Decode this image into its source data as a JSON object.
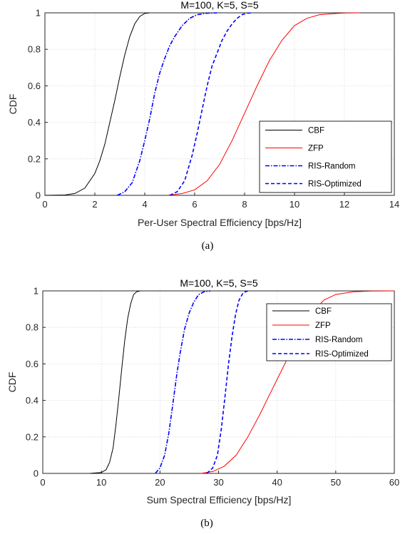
{
  "chart_data": [
    {
      "type": "line",
      "title": "M=100, K=5, S=5",
      "xlabel": "Per-User Spectral Efficiency [bps/Hz]",
      "ylabel": "CDF",
      "caption": "(a)",
      "xlim": [
        0,
        14
      ],
      "ylim": [
        0,
        1
      ],
      "xticks": [
        "0",
        "2",
        "4",
        "6",
        "8",
        "10",
        "12",
        "14"
      ],
      "yticks": [
        "0",
        "0.2",
        "0.4",
        "0.6",
        "0.8",
        "1"
      ],
      "grid": true,
      "legend_position": "bottom-right",
      "series": [
        {
          "name": "CBF",
          "color": "#000000",
          "style": "solid",
          "x": [
            0.0,
            0.8,
            1.2,
            1.6,
            2.0,
            2.2,
            2.4,
            2.6,
            2.8,
            3.0,
            3.2,
            3.4,
            3.6,
            3.8,
            4.0,
            4.2
          ],
          "y": [
            0.0,
            0.002,
            0.01,
            0.04,
            0.12,
            0.19,
            0.28,
            0.4,
            0.52,
            0.65,
            0.77,
            0.87,
            0.94,
            0.98,
            0.997,
            1.0
          ]
        },
        {
          "name": "ZFP",
          "color": "#ff0000",
          "style": "solid",
          "x": [
            4.9,
            5.5,
            6.0,
            6.5,
            7.0,
            7.5,
            8.0,
            8.5,
            9.0,
            9.5,
            10.0,
            10.5,
            11.0,
            11.5,
            12.0,
            12.6
          ],
          "y": [
            0.0,
            0.01,
            0.03,
            0.08,
            0.17,
            0.3,
            0.45,
            0.6,
            0.74,
            0.85,
            0.93,
            0.97,
            0.99,
            0.995,
            0.999,
            1.0
          ]
        },
        {
          "name": "RIS-Random",
          "color": "#0000ff",
          "style": "dashdot",
          "x": [
            2.9,
            3.2,
            3.5,
            3.8,
            4.0,
            4.2,
            4.4,
            4.6,
            4.8,
            5.0,
            5.2,
            5.5,
            5.8,
            6.1,
            6.5,
            6.9
          ],
          "y": [
            0.0,
            0.02,
            0.07,
            0.19,
            0.3,
            0.42,
            0.56,
            0.67,
            0.75,
            0.82,
            0.87,
            0.93,
            0.97,
            0.99,
            0.998,
            1.0
          ]
        },
        {
          "name": "RIS-Optimized",
          "color": "#0000ff",
          "style": "dashed",
          "x": [
            5.0,
            5.3,
            5.6,
            5.9,
            6.1,
            6.3,
            6.5,
            6.7,
            6.9,
            7.1,
            7.3,
            7.5,
            7.7,
            7.9,
            8.1,
            8.3
          ],
          "y": [
            0.0,
            0.02,
            0.08,
            0.22,
            0.34,
            0.47,
            0.6,
            0.71,
            0.78,
            0.85,
            0.9,
            0.94,
            0.97,
            0.99,
            0.998,
            1.0
          ]
        }
      ]
    },
    {
      "type": "line",
      "title": "M=100, K=5, S=5",
      "xlabel": "Sum Spectral Efficiency [bps/Hz]",
      "ylabel": "CDF",
      "caption": "(b)",
      "xlim": [
        0,
        60
      ],
      "ylim": [
        0,
        1
      ],
      "xticks": [
        "0",
        "10",
        "20",
        "30",
        "40",
        "50",
        "60"
      ],
      "yticks": [
        "0",
        "0.2",
        "0.4",
        "0.6",
        "0.8",
        "1"
      ],
      "grid": true,
      "legend_position": "top-right",
      "series": [
        {
          "name": "CBF",
          "color": "#000000",
          "style": "solid",
          "x": [
            8.0,
            10.0,
            10.8,
            11.4,
            12.0,
            12.5,
            13.0,
            13.5,
            14.0,
            14.5,
            15.0,
            15.5,
            16.0,
            16.6
          ],
          "y": [
            0.0,
            0.005,
            0.02,
            0.06,
            0.14,
            0.27,
            0.42,
            0.58,
            0.73,
            0.85,
            0.93,
            0.98,
            0.995,
            1.0
          ]
        },
        {
          "name": "ZFP",
          "color": "#ff0000",
          "style": "solid",
          "x": [
            27.0,
            29.0,
            31.0,
            33.0,
            35.0,
            37.0,
            39.0,
            41.0,
            43.0,
            45.0,
            46.5,
            48.0,
            50.0,
            53.0,
            56.0,
            60.0
          ],
          "y": [
            0.0,
            0.01,
            0.04,
            0.1,
            0.2,
            0.32,
            0.45,
            0.58,
            0.71,
            0.84,
            0.9,
            0.95,
            0.98,
            0.995,
            0.999,
            1.0
          ]
        },
        {
          "name": "RIS-Random",
          "color": "#0000ff",
          "style": "dashdot",
          "x": [
            19.2,
            20.0,
            20.8,
            21.5,
            22.2,
            22.9,
            23.5,
            24.2,
            25.0,
            25.8,
            26.6,
            27.5,
            28.6
          ],
          "y": [
            0.0,
            0.03,
            0.1,
            0.22,
            0.38,
            0.55,
            0.67,
            0.79,
            0.88,
            0.94,
            0.98,
            0.995,
            1.0
          ]
        },
        {
          "name": "RIS-Optimized",
          "color": "#0000ff",
          "style": "dashed",
          "x": [
            28.0,
            29.0,
            29.8,
            30.5,
            31.1,
            31.7,
            32.3,
            32.9,
            33.5,
            34.2,
            35.0
          ],
          "y": [
            0.0,
            0.03,
            0.1,
            0.25,
            0.42,
            0.6,
            0.75,
            0.87,
            0.95,
            0.99,
            1.0
          ]
        }
      ]
    }
  ]
}
